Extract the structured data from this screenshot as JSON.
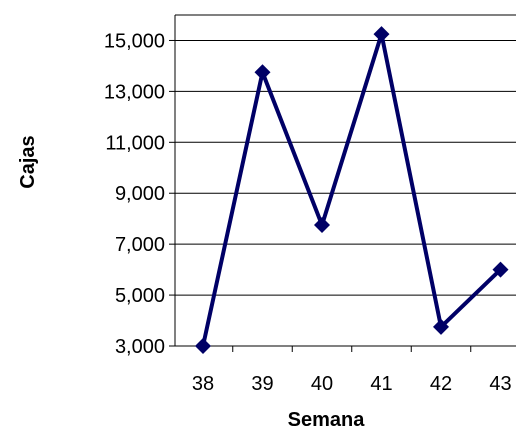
{
  "chart_data": {
    "type": "line",
    "xlabel": "Semana",
    "ylabel": "Cajas",
    "categories": [
      "38",
      "39",
      "40",
      "41",
      "42",
      "43"
    ],
    "series": [
      {
        "values": [
          3000,
          13750,
          7750,
          15250,
          3750,
          6000
        ]
      }
    ],
    "ylim": [
      3000,
      16000
    ],
    "yticks": [
      3000,
      5000,
      7000,
      9000,
      11000,
      13000,
      15000
    ],
    "ytick_labels": [
      "3,000",
      "5,000",
      "7,000",
      "9,000",
      "11,000",
      "13,000",
      "15,000"
    ],
    "grid": true,
    "line_color": "#000066"
  }
}
